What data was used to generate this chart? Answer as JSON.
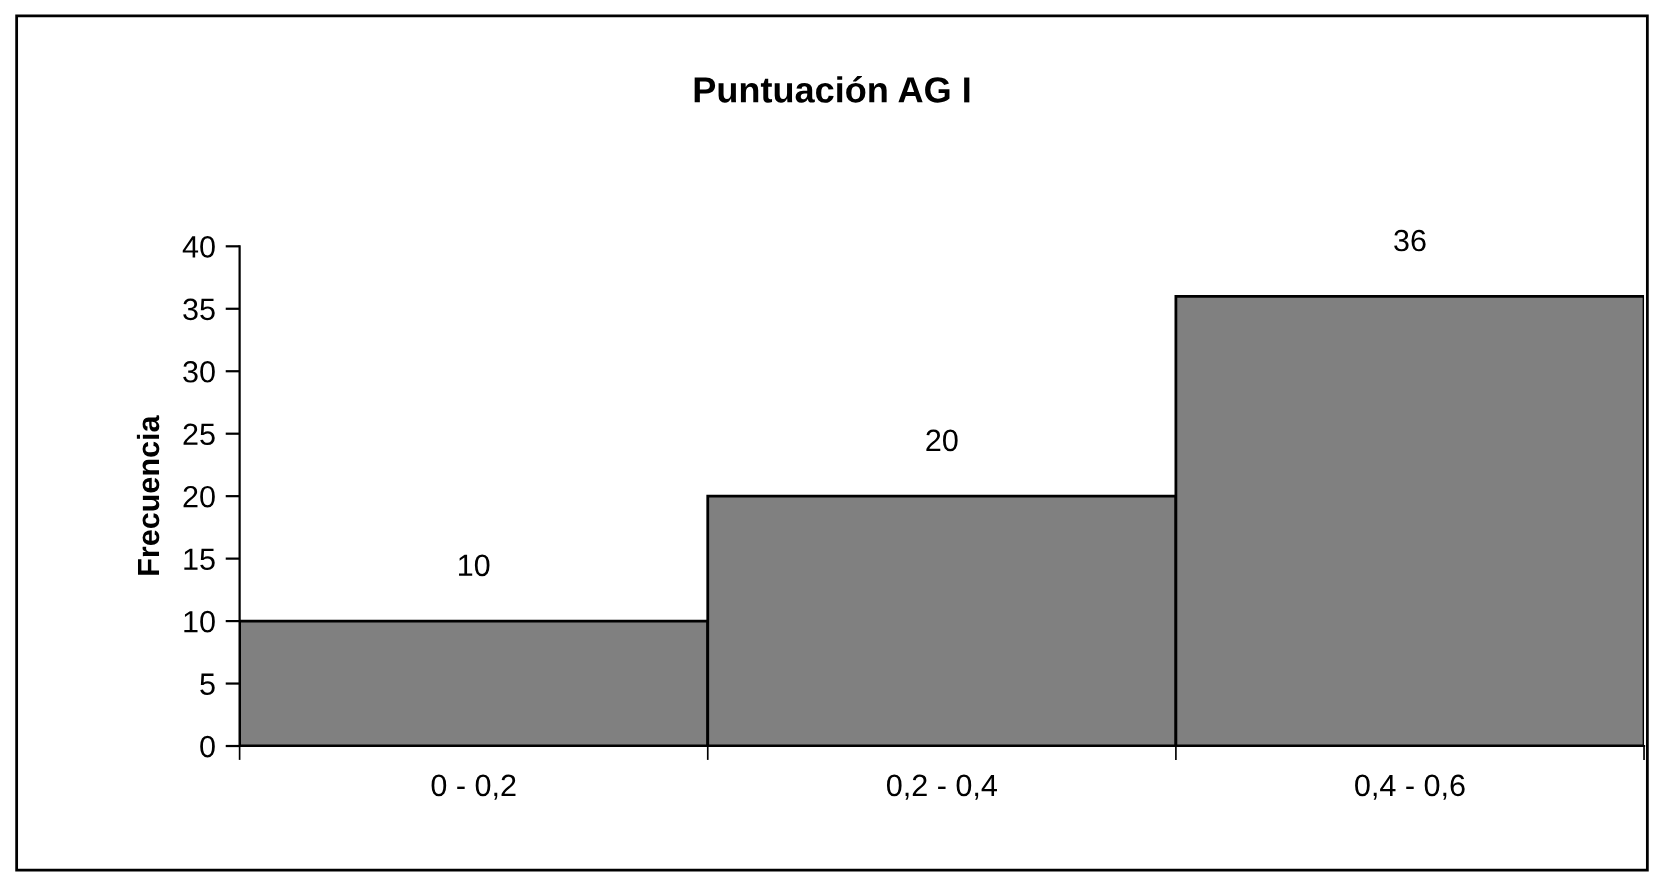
{
  "chart_data": {
    "type": "bar",
    "title": "Puntuación AG I",
    "ylabel": "Frecuencia",
    "categories": [
      "0 - 0,2",
      "0,2 - 0,4",
      "0,4 - 0,6"
    ],
    "values": [
      10,
      20,
      36
    ],
    "color": "#808080",
    "ylim": [
      0,
      40
    ],
    "yticks": [
      0,
      5,
      10,
      15,
      20,
      25,
      30,
      35,
      40
    ],
    "data_labels": true,
    "grid": false,
    "legend": false
  }
}
